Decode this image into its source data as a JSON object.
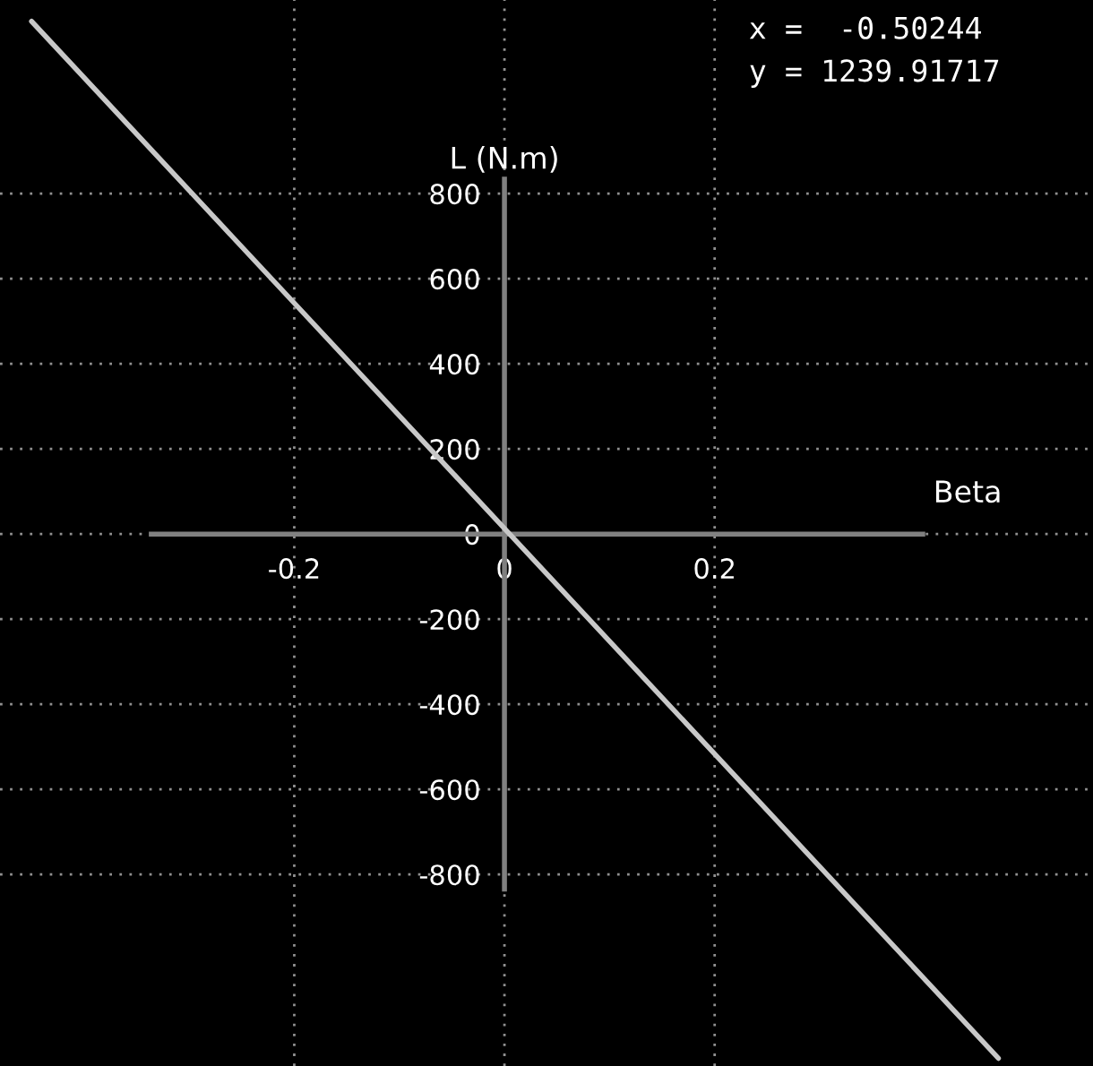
{
  "chart_data": {
    "type": "line",
    "xlabel": "Beta",
    "ylabel": "L (N.m)",
    "x": [
      -0.45,
      0.47
    ],
    "series": [
      {
        "color": "#c8c8c8",
        "values": [
          1205,
          -1232
        ]
      }
    ],
    "xlim": [
      -0.48,
      0.56
    ],
    "ylim": [
      -1250,
      1255
    ],
    "xticks": [
      -0.2,
      0,
      0.2
    ],
    "yticks": [
      -800,
      -600,
      -400,
      -200,
      0,
      200,
      400,
      600,
      800
    ],
    "grid": true,
    "line_style": "solid",
    "marker": "none",
    "annotations": [
      "x =  -0.50244",
      "y = 1239.91717"
    ]
  }
}
